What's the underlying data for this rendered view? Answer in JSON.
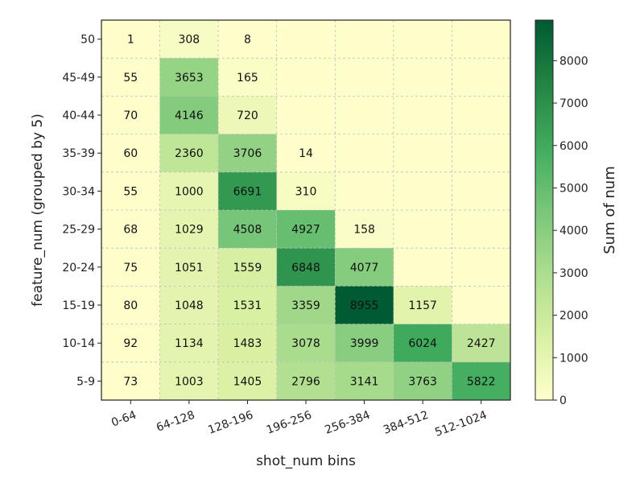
{
  "chart_data": {
    "type": "heatmap",
    "xlabel": "shot_num bins",
    "ylabel": "feature_num (grouped by 5)",
    "x_categories": [
      "0-64",
      "64-128",
      "128-196",
      "196-256",
      "256-384",
      "384-512",
      "512-1024"
    ],
    "y_categories": [
      "50",
      "45-49",
      "40-44",
      "35-39",
      "30-34",
      "25-29",
      "20-24",
      "15-19",
      "10-14",
      "5-9"
    ],
    "values": [
      [
        1,
        308,
        8,
        null,
        null,
        null,
        null
      ],
      [
        55,
        3653,
        165,
        null,
        null,
        null,
        null
      ],
      [
        70,
        4146,
        720,
        null,
        null,
        null,
        null
      ],
      [
        60,
        2360,
        3706,
        14,
        null,
        null,
        null
      ],
      [
        55,
        1000,
        6691,
        310,
        null,
        null,
        null
      ],
      [
        68,
        1029,
        4508,
        4927,
        158,
        null,
        null
      ],
      [
        75,
        1051,
        1559,
        6848,
        4077,
        null,
        null
      ],
      [
        80,
        1048,
        1531,
        3359,
        8955,
        1157,
        null
      ],
      [
        92,
        1134,
        1483,
        3078,
        3999,
        6024,
        2427
      ],
      [
        73,
        1003,
        1405,
        2796,
        3141,
        3763,
        5822
      ]
    ],
    "colorbar": {
      "label": "Sum of num",
      "min": 0,
      "max": 8955,
      "ticks": [
        0,
        1000,
        2000,
        3000,
        4000,
        5000,
        6000,
        7000,
        8000
      ]
    },
    "colormap": {
      "name": "YlGn",
      "stops": [
        "#ffffcc",
        "#d9f0a3",
        "#addd8e",
        "#78c679",
        "#41ab5d",
        "#238443",
        "#005a32"
      ]
    },
    "grid": true
  }
}
